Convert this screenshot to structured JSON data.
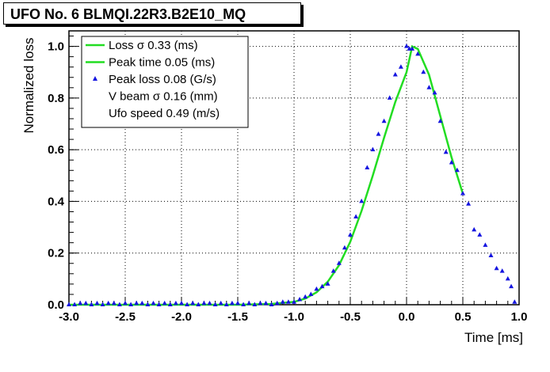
{
  "chart_data": {
    "type": "scatter",
    "title": "UFO No. 6 BLMQI.22R3.B2E10_MQ",
    "xlabel": "Time [ms]",
    "ylabel": "Normalized loss",
    "xlim": [
      -3.0,
      1.0
    ],
    "ylim": [
      0.0,
      1.06
    ],
    "grid": true,
    "x_ticks": [
      "-3.0",
      "-2.5",
      "-2.0",
      "-1.5",
      "-1.0",
      "-0.5",
      "0.0",
      "0.5",
      "1.0"
    ],
    "y_ticks": [
      "0.0",
      "0.2",
      "0.4",
      "0.6",
      "0.8",
      "1.0"
    ],
    "legend_position": "top-left",
    "legend": [
      {
        "label": "Loss σ   0.33 (ms)",
        "symbol": "line",
        "color": "#22dd22"
      },
      {
        "label": "Peak time   0.05 (ms)",
        "symbol": "line",
        "color": "#22dd22"
      },
      {
        "label": "Peak loss  0.08 (G/s)",
        "symbol": "triangle",
        "color": "#1515e0"
      },
      {
        "label": "V beam σ  0.16 (mm)",
        "symbol": "none",
        "color": ""
      },
      {
        "label": "Ufo speed   0.49 (m/s)",
        "symbol": "none",
        "color": ""
      }
    ],
    "series": [
      {
        "kind": "fit-line",
        "color": "#22dd22",
        "x": [
          -3.0,
          -2.5,
          -2.0,
          -1.5,
          -1.2,
          -1.0,
          -0.9,
          -0.8,
          -0.7,
          -0.6,
          -0.5,
          -0.4,
          -0.3,
          -0.2,
          -0.1,
          0.0,
          0.05,
          0.1,
          0.2,
          0.3,
          0.4,
          0.5
        ],
        "y": [
          0.0,
          0.0,
          0.0,
          0.0,
          0.003,
          0.011,
          0.024,
          0.048,
          0.089,
          0.153,
          0.244,
          0.363,
          0.5,
          0.646,
          0.785,
          0.9,
          1.0,
          0.99,
          0.89,
          0.73,
          0.57,
          0.43
        ]
      },
      {
        "kind": "points",
        "color": "#1515e0",
        "x": [
          -3.0,
          -2.95,
          -2.9,
          -2.85,
          -2.8,
          -2.75,
          -2.7,
          -2.65,
          -2.6,
          -2.55,
          -2.5,
          -2.45,
          -2.4,
          -2.35,
          -2.3,
          -2.25,
          -2.2,
          -2.15,
          -2.1,
          -2.05,
          -2.0,
          -1.95,
          -1.9,
          -1.85,
          -1.8,
          -1.75,
          -1.7,
          -1.65,
          -1.6,
          -1.55,
          -1.5,
          -1.45,
          -1.4,
          -1.35,
          -1.3,
          -1.25,
          -1.2,
          -1.15,
          -1.1,
          -1.05,
          -1.0,
          -0.95,
          -0.9,
          -0.85,
          -0.8,
          -0.75,
          -0.7,
          -0.65,
          -0.6,
          -0.55,
          -0.5,
          -0.45,
          -0.4,
          -0.35,
          -0.3,
          -0.25,
          -0.2,
          -0.15,
          -0.1,
          -0.05,
          0.0,
          0.025,
          0.05,
          0.1,
          0.15,
          0.2,
          0.25,
          0.3,
          0.35,
          0.4,
          0.45,
          0.5,
          0.55,
          0.6,
          0.65,
          0.7,
          0.75,
          0.8,
          0.85,
          0.9,
          0.93,
          0.96
        ],
        "y": [
          0.0,
          0.0,
          0.005,
          0.005,
          0.0,
          0.005,
          0.0,
          0.005,
          0.005,
          0.0,
          0.005,
          0.0,
          0.005,
          0.005,
          0.0,
          0.005,
          0.0,
          0.005,
          0.0,
          0.005,
          0.005,
          0.0,
          0.005,
          0.0,
          0.005,
          0.005,
          0.0,
          0.005,
          0.0,
          0.005,
          0.005,
          0.0,
          0.005,
          0.0,
          0.005,
          0.005,
          0.0,
          0.005,
          0.01,
          0.01,
          0.01,
          0.02,
          0.03,
          0.04,
          0.06,
          0.07,
          0.08,
          0.13,
          0.16,
          0.22,
          0.27,
          0.34,
          0.4,
          0.53,
          0.6,
          0.66,
          0.71,
          0.8,
          0.89,
          0.92,
          1.0,
          0.99,
          0.99,
          0.97,
          0.9,
          0.84,
          0.82,
          0.71,
          0.59,
          0.55,
          0.52,
          0.43,
          0.39,
          0.29,
          0.27,
          0.23,
          0.19,
          0.14,
          0.13,
          0.1,
          0.07,
          0.01
        ]
      }
    ]
  }
}
